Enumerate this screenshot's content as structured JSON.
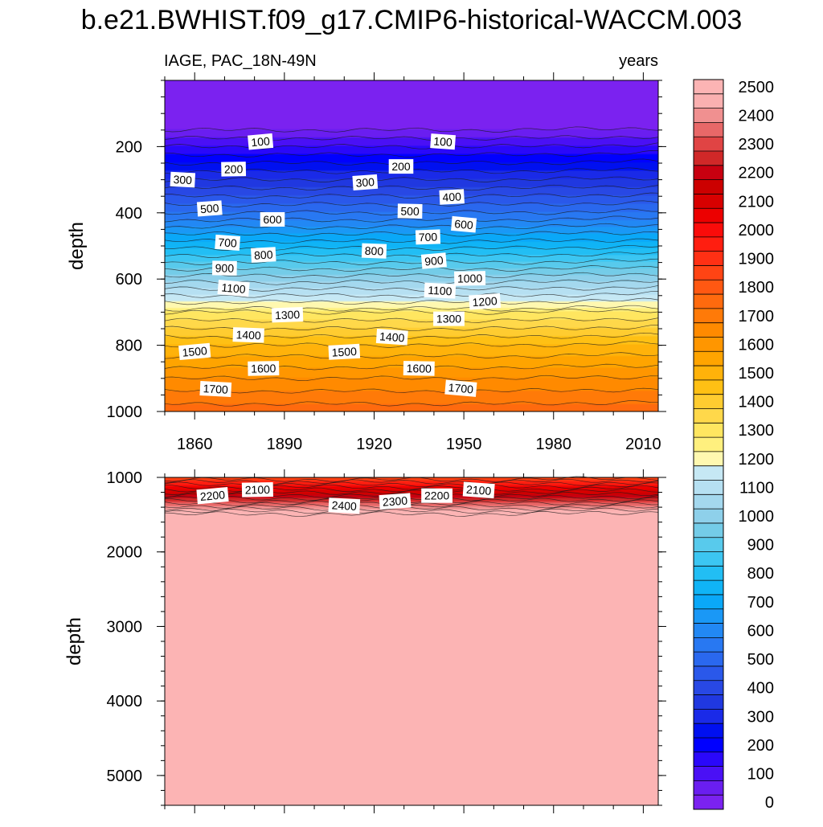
{
  "chart_data": [
    {
      "type": "heatmap",
      "panel": "upper",
      "title": "b.e21.BWHIST.f09_g17.CMIP6-historical-WACCM.003",
      "left_subtitle": "IAGE, PAC_18N-49N",
      "right_subtitle": "years",
      "xlabel": "",
      "ylabel": "depth",
      "xlim": [
        1850,
        2015
      ],
      "ylim": [
        1000,
        0
      ],
      "x_ticks": [
        1860,
        1890,
        1920,
        1950,
        1980,
        2010
      ],
      "y_ticks": [
        200,
        400,
        600,
        800,
        1000
      ],
      "profile": {
        "depth": [
          0,
          150,
          250,
          400,
          550,
          690,
          700,
          800,
          900,
          1000
        ],
        "value": [
          20,
          50,
          250,
          550,
          900,
          1250,
          1300,
          1500,
          1650,
          1780
        ]
      },
      "contour_labels": [
        {
          "text": "100",
          "year": 1882,
          "depth": 185
        },
        {
          "text": "200",
          "year": 1873,
          "depth": 268
        },
        {
          "text": "300",
          "year": 1856,
          "depth": 300
        },
        {
          "text": "500",
          "year": 1865,
          "depth": 387
        },
        {
          "text": "600",
          "year": 1886,
          "depth": 420
        },
        {
          "text": "700",
          "year": 1871,
          "depth": 490
        },
        {
          "text": "800",
          "year": 1883,
          "depth": 527
        },
        {
          "text": "900",
          "year": 1870,
          "depth": 567
        },
        {
          "text": "1100",
          "year": 1873,
          "depth": 628
        },
        {
          "text": "1300",
          "year": 1891,
          "depth": 708
        },
        {
          "text": "1400",
          "year": 1878,
          "depth": 769
        },
        {
          "text": "1500",
          "year": 1860,
          "depth": 819
        },
        {
          "text": "1600",
          "year": 1883,
          "depth": 870
        },
        {
          "text": "1700",
          "year": 1867,
          "depth": 932
        },
        {
          "text": "300",
          "year": 1917,
          "depth": 308
        },
        {
          "text": "200",
          "year": 1929,
          "depth": 260
        },
        {
          "text": "100",
          "year": 1943,
          "depth": 185
        },
        {
          "text": "400",
          "year": 1946,
          "depth": 352
        },
        {
          "text": "500",
          "year": 1932,
          "depth": 395
        },
        {
          "text": "600",
          "year": 1950,
          "depth": 435
        },
        {
          "text": "700",
          "year": 1938,
          "depth": 473
        },
        {
          "text": "800",
          "year": 1920,
          "depth": 515
        },
        {
          "text": "900",
          "year": 1940,
          "depth": 545
        },
        {
          "text": "1000",
          "year": 1952,
          "depth": 598
        },
        {
          "text": "1100",
          "year": 1942,
          "depth": 635
        },
        {
          "text": "1200",
          "year": 1957,
          "depth": 668
        },
        {
          "text": "1300",
          "year": 1945,
          "depth": 720
        },
        {
          "text": "1400",
          "year": 1926,
          "depth": 775
        },
        {
          "text": "1500",
          "year": 1910,
          "depth": 820
        },
        {
          "text": "1600",
          "year": 1935,
          "depth": 870
        },
        {
          "text": "1700",
          "year": 1949,
          "depth": 930
        }
      ]
    },
    {
      "type": "heatmap",
      "panel": "lower",
      "xlabel": "",
      "ylabel": "depth",
      "xlim": [
        1850,
        2015
      ],
      "ylim": [
        5400,
        1000
      ],
      "y_ticks": [
        1000,
        2000,
        3000,
        4000,
        5000
      ],
      "profile": {
        "depth": [
          1000,
          1060,
          1130,
          1200,
          1280,
          1350,
          1420,
          1470,
          1500,
          5400
        ],
        "value": [
          1850,
          1950,
          2050,
          2150,
          2250,
          2350,
          2450,
          2520,
          2560,
          2600
        ]
      },
      "contour_labels": [
        {
          "text": "2200",
          "year": 1866,
          "depth": 1245
        },
        {
          "text": "2100",
          "year": 1881,
          "depth": 1165
        },
        {
          "text": "2400",
          "year": 1910,
          "depth": 1380
        },
        {
          "text": "2300",
          "year": 1927,
          "depth": 1320
        },
        {
          "text": "2200",
          "year": 1941,
          "depth": 1245
        },
        {
          "text": "2100",
          "year": 1955,
          "depth": 1170
        }
      ]
    },
    {
      "type": "colorbar",
      "levels": [
        0,
        50,
        100,
        150,
        200,
        250,
        300,
        350,
        400,
        450,
        500,
        550,
        600,
        650,
        700,
        750,
        800,
        850,
        900,
        950,
        1000,
        1050,
        1100,
        1150,
        1200,
        1250,
        1300,
        1350,
        1400,
        1450,
        1500,
        1550,
        1600,
        1650,
        1700,
        1750,
        1800,
        1850,
        1900,
        1950,
        2000,
        2050,
        2100,
        2150,
        2200,
        2250,
        2300,
        2350,
        2400,
        2450,
        2500,
        2550
      ],
      "labels": [
        "0",
        "100",
        "200",
        "300",
        "400",
        "500",
        "600",
        "700",
        "800",
        "900",
        "1000",
        "1100",
        "1200",
        "1300",
        "1400",
        "1500",
        "1600",
        "1700",
        "1800",
        "1900",
        "2000",
        "2100",
        "2200",
        "2300",
        "2400",
        "2500"
      ],
      "colors": [
        "#7b22f0",
        "#6a1ef0",
        "#4a10f5",
        "#2a08fa",
        "#0000ff",
        "#0010f0",
        "#1a2ae8",
        "#2038e0",
        "#2848e4",
        "#2a58ea",
        "#2a68ee",
        "#2878f2",
        "#2288f4",
        "#1a98f6",
        "#0aa8f8",
        "#10b4f6",
        "#22bef4",
        "#3cc6f2",
        "#58caec",
        "#74cce8",
        "#8ed0ea",
        "#a4d8ee",
        "#b6e0f2",
        "#c6e8f4",
        "#fff8b0",
        "#fff07e",
        "#ffe660",
        "#ffd84a",
        "#ffcc30",
        "#ffc014",
        "#ffb20a",
        "#ffa400",
        "#ff9600",
        "#ff8a00",
        "#ff7a08",
        "#ff6a0e",
        "#ff5812",
        "#ff4414",
        "#ff3014",
        "#ff1e10",
        "#fa0c0a",
        "#ec0000",
        "#d80000",
        "#cc0000",
        "#c80010",
        "#d02828",
        "#e04444",
        "#e86868",
        "#f09090",
        "#fab0b0",
        "#fcb4b4"
      ]
    }
  ]
}
